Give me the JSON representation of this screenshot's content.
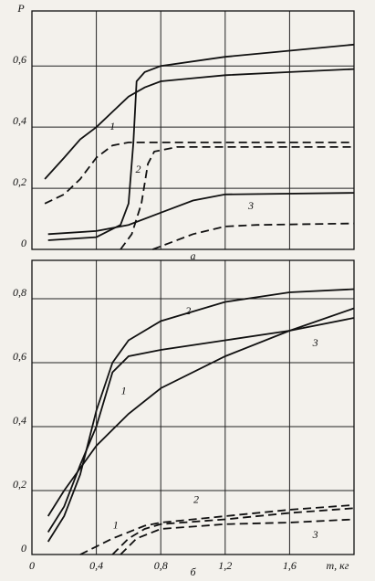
{
  "chart_data": [
    {
      "type": "line",
      "y_label": "P",
      "panel_label": "а",
      "xlim": [
        0,
        2.0
      ],
      "ylim": [
        0,
        0.78
      ],
      "xticks": [
        0.4,
        0.8,
        1.2,
        1.6
      ],
      "show_xtick_labels": false,
      "yticks": [
        0,
        {
          "value": 0.2,
          "label": "0,2"
        },
        {
          "value": 0.4,
          "label": "0,4"
        },
        {
          "value": 0.6,
          "label": "0,6"
        }
      ],
      "grid": true,
      "series": [
        {
          "color": "#111",
          "dashed": false,
          "x": [
            0.08,
            0.2,
            0.3,
            0.4,
            0.5,
            0.6,
            0.7,
            0.8,
            1.0,
            1.2,
            1.6,
            2.0
          ],
          "values": [
            0.23,
            0.3,
            0.36,
            0.4,
            0.45,
            0.5,
            0.53,
            0.55,
            0.56,
            0.57,
            0.58,
            0.59
          ]
        },
        {
          "color": "#111",
          "dashed": true,
          "x": [
            0.08,
            0.2,
            0.3,
            0.4,
            0.5,
            0.6,
            0.8,
            1.2,
            2.0
          ],
          "values": [
            0.15,
            0.18,
            0.23,
            0.3,
            0.34,
            0.35,
            0.35,
            0.35,
            0.35
          ]
        },
        {
          "color": "#111",
          "dashed": false,
          "x": [
            0.1,
            0.4,
            0.55,
            0.6,
            0.63,
            0.65,
            0.7,
            0.8,
            1.2,
            1.6,
            2.0
          ],
          "values": [
            0.03,
            0.04,
            0.08,
            0.15,
            0.35,
            0.55,
            0.58,
            0.6,
            0.63,
            0.65,
            0.67
          ]
        },
        {
          "color": "#111",
          "dashed": true,
          "x": [
            0.55,
            0.62,
            0.68,
            0.72,
            0.76,
            0.9,
            2.0
          ],
          "values": [
            0,
            0.05,
            0.15,
            0.28,
            0.32,
            0.335,
            0.335
          ]
        },
        {
          "color": "#111",
          "dashed": false,
          "x": [
            0.1,
            0.4,
            0.6,
            0.8,
            1.0,
            1.2,
            2.0
          ],
          "values": [
            0.05,
            0.06,
            0.08,
            0.12,
            0.16,
            0.18,
            0.185
          ]
        },
        {
          "color": "#111",
          "dashed": true,
          "x": [
            0.75,
            0.85,
            1.0,
            1.2,
            1.4,
            2.0
          ],
          "values": [
            0,
            0.02,
            0.05,
            0.075,
            0.08,
            0.085
          ]
        }
      ],
      "annotations": [
        "1",
        "2",
        "3"
      ]
    },
    {
      "type": "line",
      "x_label": "m, кг",
      "panel_label": "б",
      "xlim": [
        0,
        2.0
      ],
      "ylim": [
        0,
        0.92
      ],
      "xticks": [
        0,
        {
          "value": 0.4,
          "label": "0,4"
        },
        {
          "value": 0.8,
          "label": "0,8"
        },
        {
          "value": 1.2,
          "label": "1,2"
        },
        {
          "value": 1.6,
          "label": "1,6"
        }
      ],
      "show_xtick_labels": true,
      "yticks": [
        0,
        {
          "value": 0.2,
          "label": "0,2"
        },
        {
          "value": 0.4,
          "label": "0,4"
        },
        {
          "value": 0.6,
          "label": "0,6"
        },
        {
          "value": 0.8,
          "label": "0,8"
        }
      ],
      "grid": true,
      "series": [
        {
          "color": "#111",
          "dashed": false,
          "x": [
            0.1,
            0.2,
            0.3,
            0.4,
            0.5,
            0.6,
            0.8,
            1.2,
            1.6,
            2.0
          ],
          "values": [
            0.07,
            0.15,
            0.28,
            0.4,
            0.57,
            0.62,
            0.64,
            0.67,
            0.7,
            0.74
          ]
        },
        {
          "color": "#111",
          "dashed": false,
          "x": [
            0.1,
            0.2,
            0.3,
            0.4,
            0.5,
            0.6,
            0.8,
            1.2,
            1.6,
            2.0
          ],
          "values": [
            0.04,
            0.12,
            0.25,
            0.45,
            0.6,
            0.67,
            0.73,
            0.79,
            0.82,
            0.83
          ]
        },
        {
          "color": "#111",
          "dashed": false,
          "x": [
            0.1,
            0.2,
            0.3,
            0.4,
            0.6,
            0.8,
            1.2,
            1.6,
            2.0
          ],
          "values": [
            0.12,
            0.2,
            0.27,
            0.34,
            0.44,
            0.52,
            0.62,
            0.7,
            0.77
          ]
        },
        {
          "color": "#111",
          "dashed": true,
          "x": [
            0.3,
            0.5,
            0.7,
            0.8,
            1.2,
            1.6,
            2.0
          ],
          "values": [
            0,
            0.05,
            0.09,
            0.1,
            0.12,
            0.14,
            0.155
          ]
        },
        {
          "color": "#111",
          "dashed": true,
          "x": [
            0.5,
            0.6,
            0.7,
            0.8,
            1.2,
            1.6,
            2.0
          ],
          "values": [
            0,
            0.05,
            0.08,
            0.095,
            0.11,
            0.13,
            0.145
          ]
        },
        {
          "color": "#111",
          "dashed": true,
          "x": [
            0.55,
            0.65,
            0.8,
            1.2,
            1.6,
            2.0
          ],
          "values": [
            0,
            0.05,
            0.08,
            0.095,
            0.1,
            0.11
          ]
        }
      ],
      "annotations": [
        "2",
        "3",
        "1",
        "1",
        "2",
        "3"
      ]
    }
  ]
}
